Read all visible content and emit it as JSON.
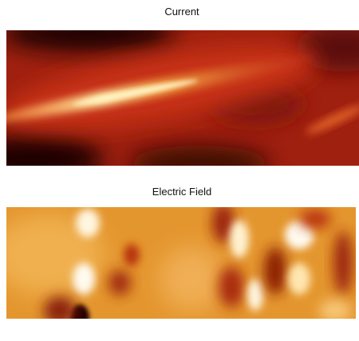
{
  "panels": [
    {
      "title": "Current"
    },
    {
      "title": "Electric Field"
    }
  ]
}
